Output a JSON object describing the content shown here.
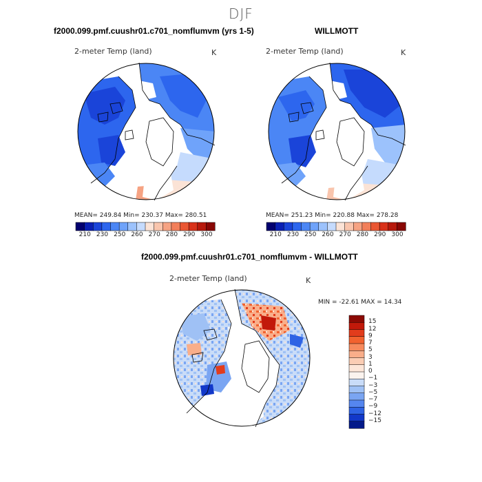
{
  "page_title": "DJF",
  "panels": [
    {
      "header": "f2000.099.pmf.cuushr01.c701_nomflumvm (yrs 1-5)",
      "subtitle": "2-meter Temp (land)",
      "units": "K",
      "stats": "MEAN= 249.84   Min= 230.37   Max= 280.51",
      "colorbar_ticks": [
        "210",
        "230",
        "250",
        "260",
        "270",
        "280",
        "290",
        "300"
      ],
      "colors": [
        "#03006f",
        "#0a1fb3",
        "#1a44d9",
        "#2d66ee",
        "#4b86f5",
        "#6fa3fa",
        "#9cc2fc",
        "#c5dbfd",
        "#fbe3d6",
        "#f9c5ad",
        "#f6a383",
        "#f27f5a",
        "#ea5733",
        "#d9321a",
        "#b7190c",
        "#880705"
      ]
    },
    {
      "header": "WILLMOTT",
      "subtitle": "2-meter Temp (land)",
      "units": "K",
      "stats": "MEAN= 251.23   Min= 220.88   Max= 278.28",
      "colorbar_ticks": [
        "210",
        "230",
        "250",
        "260",
        "270",
        "280",
        "290",
        "300"
      ],
      "colors": [
        "#03006f",
        "#0a1fb3",
        "#1a44d9",
        "#2d66ee",
        "#4b86f5",
        "#6fa3fa",
        "#9cc2fc",
        "#c5dbfd",
        "#fbe3d6",
        "#f9c5ad",
        "#f6a383",
        "#f27f5a",
        "#ea5733",
        "#d9321a",
        "#b7190c",
        "#880705"
      ]
    }
  ],
  "difference": {
    "header": "f2000.099.pmf.cuushr01.c701_nomflumvm - WILLMOTT",
    "subtitle": "2-meter Temp (land)",
    "units": "K",
    "minmax": "MIN = -22.61  MAX =  14.34",
    "colorbar_labels": [
      "15",
      "12",
      "9",
      "7",
      "5",
      "3",
      "1",
      "0",
      "−1",
      "−3",
      "−5",
      "−7",
      "−9",
      "−12",
      "−15"
    ],
    "colors": [
      "#8c0a04",
      "#c2190a",
      "#e23c1c",
      "#f2622f",
      "#f78a5d",
      "#f9ae8a",
      "#fbcdb4",
      "#fde6d8",
      "#fbf3ee",
      "#c9dcf8",
      "#9fc1f5",
      "#7aa5f2",
      "#5586ef",
      "#2f63e4",
      "#1238c9",
      "#031a8a"
    ]
  }
}
